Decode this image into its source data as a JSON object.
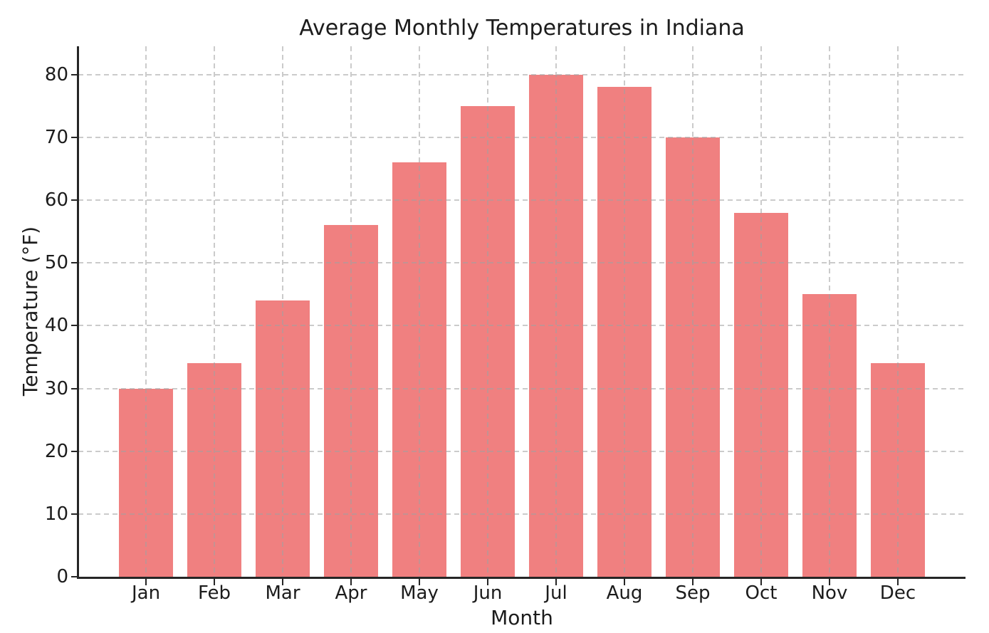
{
  "page": {
    "background": "#ffffff"
  },
  "chart_data": {
    "type": "bar",
    "title": "Average Monthly Temperatures in Indiana",
    "xlabel": "Month",
    "ylabel": "Temperature (°F)",
    "categories": [
      "Jan",
      "Feb",
      "Mar",
      "Apr",
      "May",
      "Jun",
      "Jul",
      "Aug",
      "Sep",
      "Oct",
      "Nov",
      "Dec"
    ],
    "values": [
      30,
      34,
      44,
      56,
      66,
      75,
      80,
      78,
      70,
      58,
      45,
      34
    ],
    "y_ticks": [
      0,
      10,
      20,
      30,
      40,
      50,
      60,
      70,
      80
    ],
    "ylim": [
      0,
      84.5
    ],
    "grid": true,
    "grid_style": "dashed",
    "legend": "none",
    "colors": {
      "bar": "#F08080",
      "gridline": "#c9c9c9",
      "spine": "#262626",
      "text": "#1c1c1c",
      "background": "#ffffff"
    }
  }
}
